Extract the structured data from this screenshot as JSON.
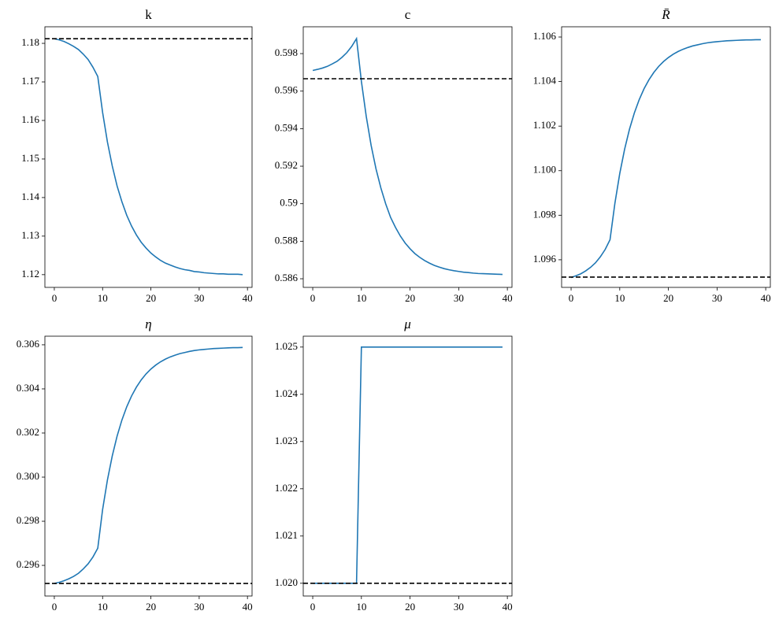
{
  "chart_data": [
    {
      "type": "line",
      "title": "k",
      "color": "#1f77b4",
      "x": [
        0,
        1,
        2,
        3,
        4,
        5,
        6,
        7,
        8,
        9,
        10,
        11,
        12,
        13,
        14,
        15,
        16,
        17,
        18,
        19,
        20,
        21,
        22,
        23,
        24,
        25,
        26,
        27,
        28,
        29,
        30,
        31,
        32,
        33,
        34,
        35,
        36,
        37,
        38,
        39
      ],
      "values": [
        1.1812,
        1.1809,
        1.1805,
        1.1799,
        1.1792,
        1.1784,
        1.1772,
        1.1758,
        1.1738,
        1.1714,
        1.1621,
        1.1544,
        1.1482,
        1.143,
        1.1389,
        1.1354,
        1.1326,
        1.1303,
        1.1284,
        1.1269,
        1.1256,
        1.1246,
        1.1237,
        1.123,
        1.1225,
        1.122,
        1.1216,
        1.1213,
        1.1211,
        1.1208,
        1.1207,
        1.1205,
        1.1204,
        1.1203,
        1.1202,
        1.1202,
        1.1201,
        1.1201,
        1.1201,
        1.12
      ],
      "hline": {
        "value": 1.1812,
        "color": "#000000",
        "dash": true
      },
      "xlim": [
        -1.95,
        40.95
      ],
      "xticks": [
        0,
        10,
        20,
        30,
        40
      ],
      "ylim": [
        1.1167,
        1.1843
      ],
      "yticks": [
        1.12,
        1.13,
        1.14,
        1.15,
        1.16,
        1.17,
        1.18
      ]
    },
    {
      "type": "line",
      "title": "c",
      "color": "#1f77b4",
      "x": [
        0,
        1,
        2,
        3,
        4,
        5,
        6,
        7,
        8,
        9,
        10,
        11,
        12,
        13,
        14,
        15,
        16,
        17,
        18,
        19,
        20,
        21,
        22,
        23,
        24,
        25,
        26,
        27,
        28,
        29,
        30,
        31,
        32,
        33,
        34,
        35,
        36,
        37,
        38,
        39
      ],
      "values": [
        0.5971,
        0.59716,
        0.59723,
        0.59732,
        0.59745,
        0.59759,
        0.5978,
        0.59805,
        0.59838,
        0.5988,
        0.59652,
        0.59465,
        0.59311,
        0.59186,
        0.59084,
        0.58999,
        0.58927,
        0.58874,
        0.58828,
        0.5879,
        0.5876,
        0.58734,
        0.58714,
        0.58697,
        0.58683,
        0.58671,
        0.58662,
        0.58654,
        0.58648,
        0.58643,
        0.58639,
        0.58635,
        0.58633,
        0.5863,
        0.58628,
        0.58627,
        0.58626,
        0.58625,
        0.58624,
        0.58623
      ],
      "hline": {
        "value": 0.59666,
        "color": "#000000",
        "dash": true
      },
      "xlim": [
        -1.95,
        40.95
      ],
      "xticks": [
        0,
        10,
        20,
        30,
        40
      ],
      "ylim": [
        0.58554,
        0.59943
      ],
      "yticks": [
        0.586,
        0.588,
        0.59,
        0.592,
        0.594,
        0.596,
        0.598
      ]
    },
    {
      "type": "line",
      "title": "R̄",
      "color": "#1f77b4",
      "x": [
        0,
        1,
        2,
        3,
        4,
        5,
        6,
        7,
        8,
        9,
        10,
        11,
        12,
        13,
        14,
        15,
        16,
        17,
        18,
        19,
        20,
        21,
        22,
        23,
        24,
        25,
        26,
        27,
        28,
        29,
        30,
        31,
        32,
        33,
        34,
        35,
        36,
        37,
        38,
        39
      ],
      "values": [
        1.0952,
        1.09528,
        1.09537,
        1.0955,
        1.09566,
        1.09586,
        1.09613,
        1.09646,
        1.0969,
        1.09853,
        1.09987,
        1.10096,
        1.10186,
        1.10259,
        1.10319,
        1.10368,
        1.10408,
        1.10441,
        1.10468,
        1.1049,
        1.10508,
        1.10523,
        1.10535,
        1.10545,
        1.10553,
        1.1056,
        1.10565,
        1.1057,
        1.10574,
        1.10577,
        1.10579,
        1.10581,
        1.10583,
        1.10584,
        1.10585,
        1.10586,
        1.10587,
        1.10587,
        1.10588,
        1.10588
      ],
      "hline": {
        "value": 1.09522,
        "color": "#000000",
        "dash": true
      },
      "xlim": [
        -1.95,
        40.95
      ],
      "xticks": [
        0,
        10,
        20,
        30,
        40
      ],
      "ylim": [
        1.09476,
        1.10646
      ],
      "yticks": [
        1.096,
        1.098,
        {
          "value": 1.1,
          "label": "1.100"
        },
        1.102,
        1.104,
        1.106
      ]
    },
    {
      "type": "line",
      "title": "η",
      "color": "#1f77b4",
      "x": [
        0,
        1,
        2,
        3,
        4,
        5,
        6,
        7,
        8,
        9,
        10,
        11,
        12,
        13,
        14,
        15,
        16,
        17,
        18,
        19,
        20,
        21,
        22,
        23,
        24,
        25,
        26,
        27,
        28,
        29,
        30,
        31,
        32,
        33,
        34,
        35,
        36,
        37,
        38,
        39
      ],
      "values": [
        0.29518,
        0.29523,
        0.2953,
        0.29539,
        0.2955,
        0.29564,
        0.29584,
        0.29607,
        0.29638,
        0.29678,
        0.29853,
        0.29987,
        0.30096,
        0.30186,
        0.30259,
        0.30319,
        0.30368,
        0.30408,
        0.30441,
        0.30468,
        0.3049,
        0.30508,
        0.30523,
        0.30535,
        0.30545,
        0.30553,
        0.3056,
        0.30565,
        0.3057,
        0.30574,
        0.30577,
        0.30579,
        0.30581,
        0.30583,
        0.30584,
        0.30585,
        0.30586,
        0.30587,
        0.30587,
        0.30588
      ],
      "hline": {
        "value": 0.29518,
        "color": "#000000",
        "dash": true
      },
      "xlim": [
        -1.95,
        40.95
      ],
      "xticks": [
        0,
        10,
        20,
        30,
        40
      ],
      "ylim": [
        0.29461,
        0.30639
      ],
      "yticks": [
        0.296,
        0.298,
        {
          "value": 0.3,
          "label": "0.300"
        },
        0.302,
        0.304,
        0.306
      ]
    },
    {
      "type": "line",
      "title": "μ",
      "color": "#1f77b4",
      "x": [
        0,
        1,
        2,
        3,
        4,
        5,
        6,
        7,
        8,
        9,
        10,
        11,
        12,
        13,
        14,
        15,
        16,
        17,
        18,
        19,
        20,
        21,
        22,
        23,
        24,
        25,
        26,
        27,
        28,
        29,
        30,
        31,
        32,
        33,
        34,
        35,
        36,
        37,
        38,
        39
      ],
      "values": [
        1.02,
        1.02,
        1.02,
        1.02,
        1.02,
        1.02,
        1.02,
        1.02,
        1.02,
        1.02,
        1.025,
        1.025,
        1.025,
        1.025,
        1.025,
        1.025,
        1.025,
        1.025,
        1.025,
        1.025,
        1.025,
        1.025,
        1.025,
        1.025,
        1.025,
        1.025,
        1.025,
        1.025,
        1.025,
        1.025,
        1.025,
        1.025,
        1.025,
        1.025,
        1.025,
        1.025,
        1.025,
        1.025,
        1.025,
        1.025
      ],
      "hline": {
        "value": 1.02,
        "color": "#000000",
        "dash": true
      },
      "xlim": [
        -1.95,
        40.95
      ],
      "xticks": [
        0,
        10,
        20,
        30,
        40
      ],
      "ylim": [
        1.01973,
        1.02523
      ],
      "yticks": [
        {
          "value": 1.02,
          "label": "1.020"
        },
        1.021,
        1.022,
        1.023,
        1.024,
        1.025
      ]
    }
  ]
}
